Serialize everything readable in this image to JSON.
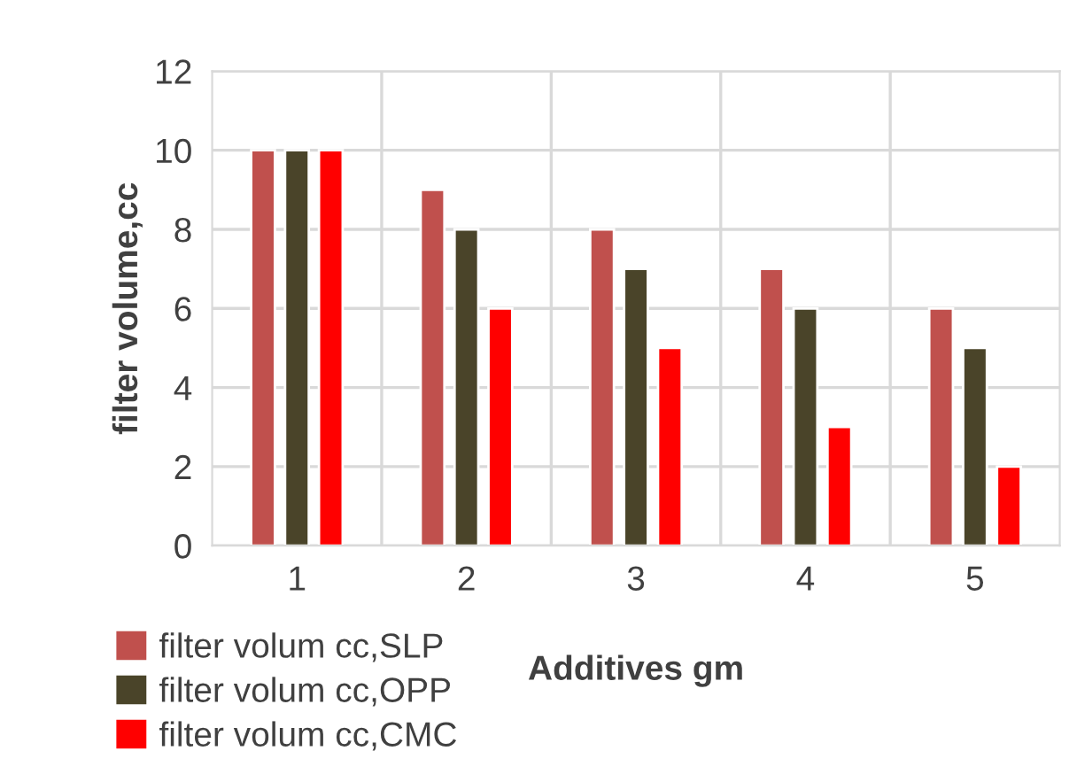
{
  "chart_data": {
    "type": "bar",
    "xlabel": "Additives gm",
    "ylabel": "filter volume,cc",
    "categories": [
      "1",
      "2",
      "3",
      "4",
      "5"
    ],
    "series": [
      {
        "name": "filter volum cc,SLP",
        "color": "#c0504d",
        "values": [
          10,
          9,
          8,
          7,
          6
        ]
      },
      {
        "name": "filter volum cc,OPP",
        "color": "#4a4429",
        "values": [
          10,
          8,
          7,
          6,
          5
        ]
      },
      {
        "name": "filter volum cc,CMC",
        "color": "#ff0000",
        "values": [
          10,
          6,
          5,
          3,
          2
        ]
      }
    ],
    "ylim": [
      0,
      12
    ],
    "yticks": [
      0,
      2,
      4,
      6,
      8,
      10,
      12
    ],
    "grid": true,
    "legend": "bottom left"
  }
}
